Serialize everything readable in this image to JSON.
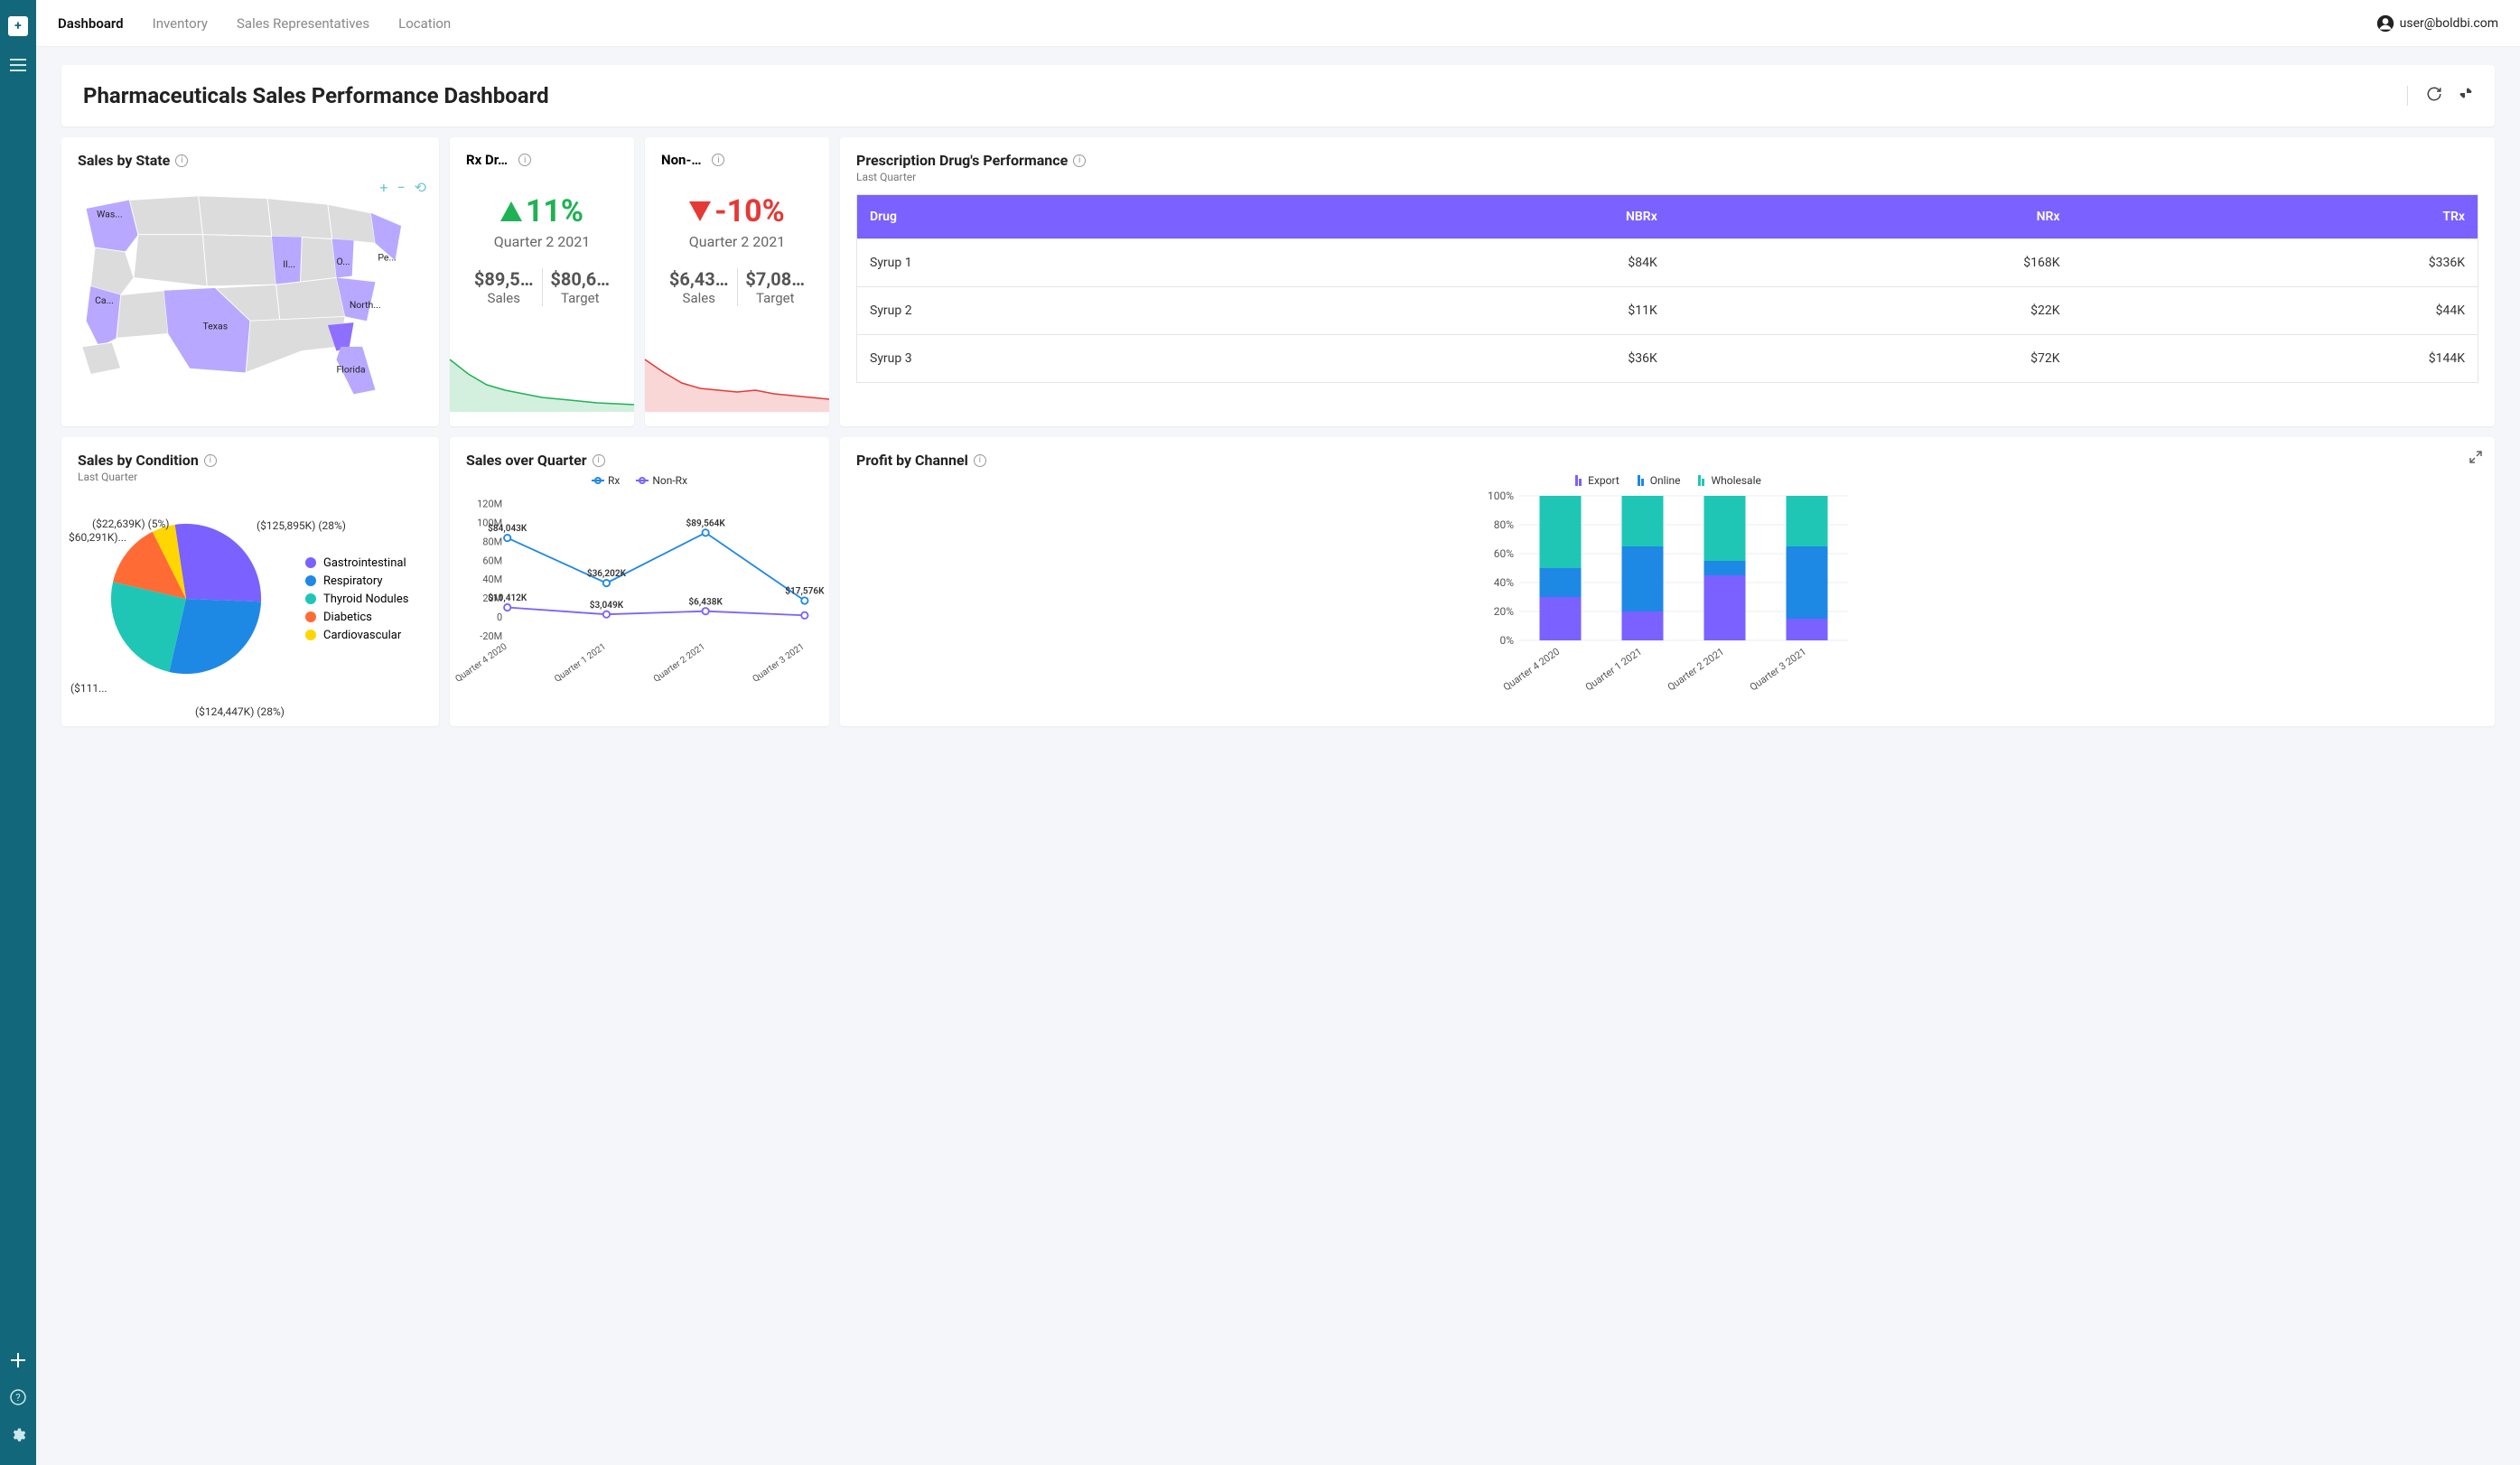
{
  "user_email": "user@boldbi.com",
  "nav_tabs": [
    "Dashboard",
    "Inventory",
    "Sales Representatives",
    "Location"
  ],
  "page_title": "Pharmaceuticals Sales Performance Dashboard",
  "colors": {
    "brand_teal": "#12687a",
    "accent_purple": "#7b61ff",
    "up_green": "#1fb254",
    "down_red": "#e53935",
    "blue": "#1e88e5",
    "teal": "#1fc6b6",
    "orange": "#ff6b35",
    "yellow": "#ffd600",
    "map_highlight": "#b9a8ff",
    "map_base": "#dcdcdc",
    "background": "#f5f6fa"
  },
  "sales_by_state": {
    "title": "Sales by State",
    "labeled_states": [
      "Was...",
      "Ca...",
      "Texas",
      "Il...",
      "O...",
      "Pe...",
      "North...",
      "Florida"
    ]
  },
  "kpi_rx": {
    "title": "Rx Dr…",
    "pct": "11%",
    "direction": "up",
    "period": "Quarter 2 2021",
    "sales": "$89,5…",
    "target": "$80,6…",
    "sales_label": "Sales",
    "target_label": "Target",
    "spark_color": "#1fb254",
    "spark_points": [
      58,
      42,
      30,
      24,
      20,
      16,
      14,
      12,
      10,
      9,
      8
    ]
  },
  "kpi_nonrx": {
    "title": "Non-…",
    "pct": "-10%",
    "direction": "down",
    "period": "Quarter 2 2021",
    "sales": "$6,43…",
    "target": "$7,08…",
    "sales_label": "Sales",
    "target_label": "Target",
    "spark_color": "#e53935",
    "spark_points": [
      58,
      44,
      32,
      26,
      24,
      22,
      24,
      20,
      18,
      16,
      14
    ]
  },
  "rx_table": {
    "title": "Prescription Drug's Performance",
    "subtitle": "Last Quarter",
    "columns": [
      "Drug",
      "NBRx",
      "NRx",
      "TRx"
    ],
    "rows": [
      [
        "Syrup 1",
        "$84K",
        "$168K",
        "$336K"
      ],
      [
        "Syrup 2",
        "$11K",
        "$22K",
        "$44K"
      ],
      [
        "Syrup 3",
        "$36K",
        "$72K",
        "$144K"
      ]
    ]
  },
  "sales_by_condition": {
    "title": "Sales by Condition",
    "subtitle": "Last Quarter",
    "slices": [
      {
        "label": "Gastrointestinal",
        "value": 28,
        "display": "($125,895K) (28%)",
        "color": "#7b61ff"
      },
      {
        "label": "Respiratory",
        "value": 28,
        "display": "($124,447K) (28%)",
        "color": "#1e88e5"
      },
      {
        "label": "Thyroid Nodules",
        "value": 25,
        "display": "($111...",
        "color": "#1fc6b6"
      },
      {
        "label": "Diabetics",
        "value": 14,
        "display": "$60,291K)...",
        "color": "#ff6b35"
      },
      {
        "label": "Cardiovascular",
        "value": 5,
        "display": "($22,639K) (5%)",
        "color": "#ffd600"
      }
    ]
  },
  "sales_over_quarter": {
    "title": "Sales over Quarter",
    "legend": [
      "Rx",
      "Non-Rx"
    ],
    "categories": [
      "Quarter 4 2020",
      "Quarter 1 2021",
      "Quarter 2 2021",
      "Quarter 3 2021"
    ],
    "y_ticks": [
      "-20M",
      "0",
      "20M",
      "40M",
      "60M",
      "80M",
      "100M",
      "120M"
    ],
    "y_min": -20,
    "y_max": 120,
    "series": [
      {
        "name": "Rx",
        "color": "#1e88e5",
        "values": [
          84.043,
          36.202,
          89.564,
          17.576
        ],
        "labels": [
          "$84,043K",
          "$36,202K",
          "$89,564K",
          "$17,576K"
        ]
      },
      {
        "name": "Non-Rx",
        "color": "#7b61ff",
        "values": [
          10.412,
          3.049,
          6.438,
          2.0
        ],
        "labels": [
          "$10,412K",
          "$3,049K",
          "$6,438K",
          ""
        ]
      }
    ]
  },
  "profit_by_channel": {
    "title": "Profit by Channel",
    "legend": [
      {
        "name": "Export",
        "color": "#7b61ff"
      },
      {
        "name": "Online",
        "color": "#1e88e5"
      },
      {
        "name": "Wholesale",
        "color": "#1fc6b6"
      }
    ],
    "categories": [
      "Quarter 4 2020",
      "Quarter 1 2021",
      "Quarter 2 2021",
      "Quarter 3 2021"
    ],
    "y_ticks": [
      "0%",
      "20%",
      "40%",
      "60%",
      "80%",
      "100%"
    ],
    "stacks": [
      {
        "export": 30,
        "online": 20,
        "wholesale": 50
      },
      {
        "export": 20,
        "online": 45,
        "wholesale": 35
      },
      {
        "export": 45,
        "online": 10,
        "wholesale": 45
      },
      {
        "export": 15,
        "online": 50,
        "wholesale": 35
      }
    ]
  }
}
